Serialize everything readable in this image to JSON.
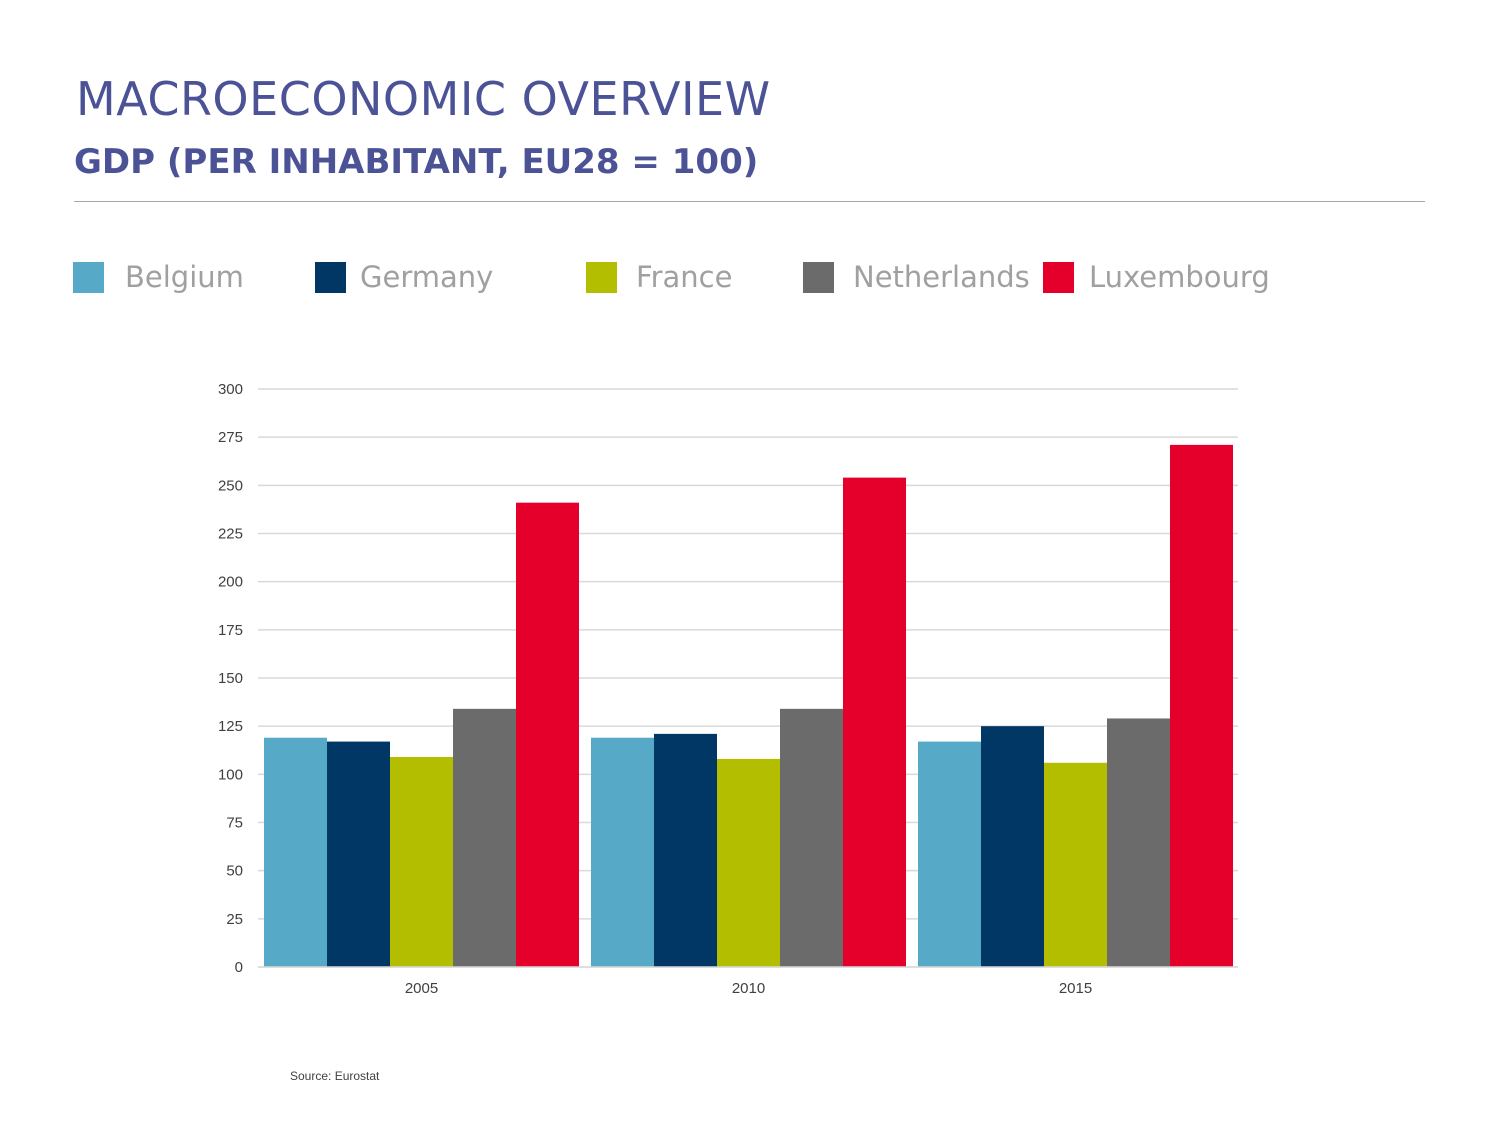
{
  "header": {
    "title": "MACROECONOMIC OVERVIEW",
    "subtitle": "GDP (PER INHABITANT, EU28 = 100)"
  },
  "source": "Source: Eurostat",
  "chart_data": {
    "type": "bar",
    "categories": [
      "2005",
      "2010",
      "2015"
    ],
    "series": [
      {
        "name": "Belgium",
        "color": "#57aac7",
        "values": [
          119,
          119,
          117
        ]
      },
      {
        "name": "Germany",
        "color": "#003764",
        "values": [
          117,
          121,
          125
        ]
      },
      {
        "name": "France",
        "color": "#b4be00",
        "values": [
          109,
          108,
          106
        ]
      },
      {
        "name": "Netherlands",
        "color": "#6a6b6a",
        "values": [
          134,
          134,
          129
        ]
      },
      {
        "name": "Luxembourg",
        "color": "#e4002b",
        "values": [
          241,
          254,
          271
        ]
      }
    ],
    "yticks": [
      "0",
      "25",
      "50",
      "75",
      "100",
      "125",
      "150",
      "175",
      "200",
      "225",
      "250",
      "275",
      "300"
    ],
    "ylim": [
      0,
      300
    ],
    "grid": true,
    "legend_position": "top"
  }
}
